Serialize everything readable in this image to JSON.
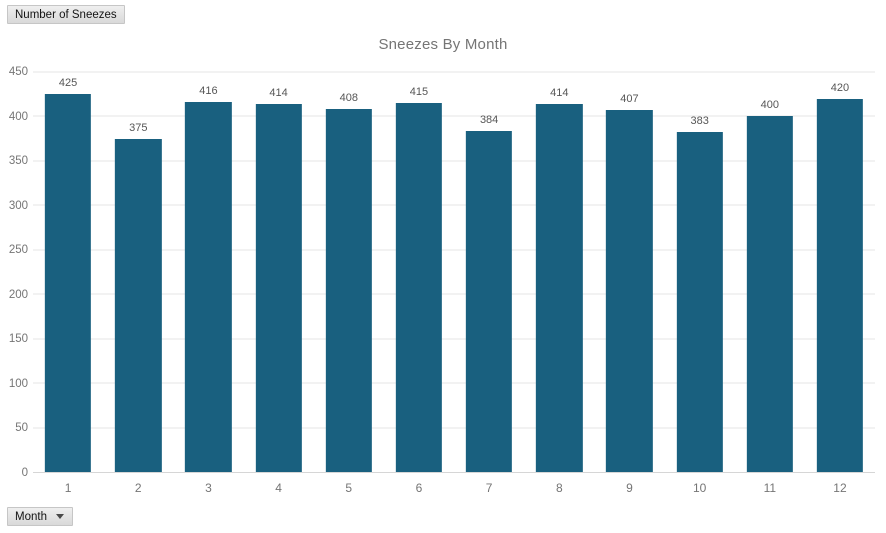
{
  "controls": {
    "metric_label": "Number of Sneezes",
    "dimension_label": "Month"
  },
  "chart_data": {
    "type": "bar",
    "title": "Sneezes By Month",
    "categories": [
      "1",
      "2",
      "3",
      "4",
      "5",
      "6",
      "7",
      "8",
      "9",
      "10",
      "11",
      "12"
    ],
    "values": [
      425,
      375,
      416,
      414,
      408,
      415,
      384,
      414,
      407,
      383,
      400,
      420
    ],
    "xlabel": "Month",
    "ylabel": "Number of Sneezes",
    "ylim": [
      0,
      450
    ],
    "ytick_step": 50,
    "grid": true,
    "legend_position": "none",
    "bar_color": "#19607F",
    "colors": {
      "gridline": "#e5e5e5",
      "axis_line": "#d6d6d6",
      "axis_text": "#757575",
      "value_label_text": "#565656",
      "title_text": "#757575",
      "chip_text": "#141414"
    }
  }
}
